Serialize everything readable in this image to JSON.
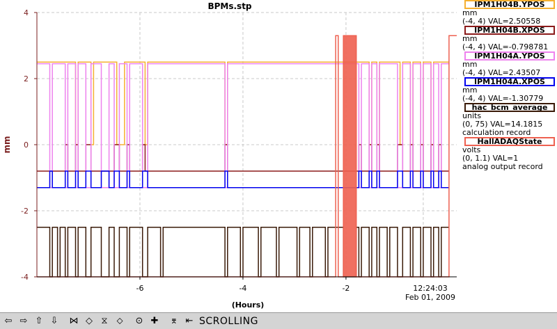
{
  "window": {
    "title": "BPMs.stp"
  },
  "chart_data": {
    "type": "line",
    "title": "BPMs.stp",
    "ylabel": "mm",
    "xlabel": "(Hours)",
    "xlim": [
      -8,
      0.15
    ],
    "ylim": [
      -4,
      4
    ],
    "x_ticks": [
      -6,
      -4,
      -2
    ],
    "y_ticks": [
      -4,
      -2,
      0,
      2,
      4
    ],
    "grid": true,
    "time_label": "12:24:03",
    "date_label": "Feb 01, 2009",
    "legend_position": "right",
    "series": [
      {
        "name": "IPM1H04B.YPOS",
        "color": "#f5b030",
        "unit": "mm",
        "range": "(-4, 4)",
        "val": "VAL=2.50558",
        "desc": "",
        "base": 2.5,
        "low": 0.0,
        "dips": [
          [
            -7.25,
            -7.2
          ],
          [
            -6.95,
            -6.9
          ],
          [
            -6.45,
            -6.3
          ],
          [
            -5.9,
            -5.85
          ],
          [
            -4.35,
            -4.3
          ],
          [
            -1.55,
            -1.5
          ],
          [
            -1.4,
            -1.35
          ],
          [
            -0.95,
            -0.9
          ],
          [
            -0.75,
            -0.7
          ],
          [
            -0.55,
            -0.5
          ],
          [
            -0.35,
            -0.3
          ]
        ]
      },
      {
        "name": "IPM1H04B.XPOS",
        "color": "#8b1a1a",
        "unit": "mm",
        "range": "(-4, 4)",
        "val": "VAL=-0.798781",
        "desc": "",
        "base": -0.8,
        "low": 0.0,
        "dips": [
          [
            -7.45,
            -7.4
          ],
          [
            -7.25,
            -7.2
          ],
          [
            -7.05,
            -6.95
          ],
          [
            -6.5,
            -6.4
          ],
          [
            -6.25,
            -6.2
          ],
          [
            -5.95,
            -5.9
          ],
          [
            -4.35,
            -4.3
          ],
          [
            -1.75,
            -1.7
          ],
          [
            -1.55,
            -1.5
          ],
          [
            -1.4,
            -1.35
          ],
          [
            -1.0,
            -0.9
          ],
          [
            -0.75,
            -0.7
          ],
          [
            -0.55,
            -0.5
          ],
          [
            -0.35,
            -0.3
          ],
          [
            -0.2,
            -0.15
          ]
        ]
      },
      {
        "name": "IPM1H04A.YPOS",
        "color": "#ee82ee",
        "unit": "mm",
        "range": "(-4, 4)",
        "val": "VAL=2.43507",
        "desc": "",
        "base": 2.45,
        "low": -1.3,
        "dips": [
          [
            -7.75,
            -7.7
          ],
          [
            -7.45,
            -7.4
          ],
          [
            -7.25,
            -7.2
          ],
          [
            -7.05,
            -6.95
          ],
          [
            -6.75,
            -6.6
          ],
          [
            -6.5,
            -6.4
          ],
          [
            -6.25,
            -6.2
          ],
          [
            -5.95,
            -5.85
          ],
          [
            -4.35,
            -4.3
          ],
          [
            -1.75,
            -1.7
          ],
          [
            -1.55,
            -1.5
          ],
          [
            -1.4,
            -1.35
          ],
          [
            -1.0,
            -0.9
          ],
          [
            -0.75,
            -0.7
          ],
          [
            -0.55,
            -0.5
          ],
          [
            -0.35,
            -0.3
          ],
          [
            -0.2,
            -0.15
          ]
        ]
      },
      {
        "name": "IPM1H04A.XPOS",
        "color": "#0000ee",
        "unit": "mm",
        "range": "(-4, 4)",
        "val": "VAL=-1.30779",
        "desc": "",
        "base": -1.3,
        "low": -0.8,
        "dips": [
          [
            -7.75,
            -7.7
          ],
          [
            -7.45,
            -7.4
          ],
          [
            -7.25,
            -7.2
          ],
          [
            -7.05,
            -6.95
          ],
          [
            -6.75,
            -6.6
          ],
          [
            -6.5,
            -6.4
          ],
          [
            -6.25,
            -6.2
          ],
          [
            -5.95,
            -5.85
          ],
          [
            -4.35,
            -4.3
          ],
          [
            -1.75,
            -1.7
          ],
          [
            -1.55,
            -1.5
          ],
          [
            -1.4,
            -1.35
          ],
          [
            -1.0,
            -0.9
          ],
          [
            -0.75,
            -0.7
          ],
          [
            -0.55,
            -0.5
          ],
          [
            -0.35,
            -0.3
          ],
          [
            -0.2,
            -0.15
          ]
        ]
      },
      {
        "name": "hac_bcm_average",
        "color": "#3a1a08",
        "unit": "units",
        "range": "(0, 75)",
        "val": "VAL=14.1815",
        "desc": "calculation record",
        "base": -2.5,
        "low": -4.0,
        "dips": [
          [
            -7.75,
            -7.7
          ],
          [
            -7.6,
            -7.55
          ],
          [
            -7.45,
            -7.4
          ],
          [
            -7.25,
            -7.2
          ],
          [
            -7.05,
            -6.95
          ],
          [
            -6.75,
            -6.6
          ],
          [
            -6.5,
            -6.4
          ],
          [
            -6.25,
            -6.2
          ],
          [
            -5.95,
            -5.85
          ],
          [
            -5.6,
            -5.55
          ],
          [
            -4.35,
            -4.3
          ],
          [
            -4.05,
            -4.0
          ],
          [
            -3.7,
            -3.65
          ],
          [
            -3.35,
            -3.3
          ],
          [
            -2.95,
            -2.9
          ],
          [
            -2.7,
            -2.65
          ],
          [
            -2.4,
            -2.35
          ],
          [
            -2.05,
            -1.8
          ],
          [
            -1.75,
            -1.7
          ],
          [
            -1.55,
            -1.5
          ],
          [
            -1.4,
            -1.35
          ],
          [
            -1.2,
            -1.15
          ],
          [
            -1.0,
            -0.9
          ],
          [
            -0.75,
            -0.7
          ],
          [
            -0.55,
            -0.5
          ],
          [
            -0.35,
            -0.3
          ],
          [
            -0.2,
            -0.15
          ]
        ]
      },
      {
        "name": "HallADAQState",
        "color": "#ee6050",
        "unit": "volts",
        "range": "(0, 1.1)",
        "val": "VAL=1",
        "desc": "analog output record",
        "base": -4.0,
        "high": 3.3,
        "pulses": [
          [
            -2.2,
            -2.15
          ],
          [
            -2.05,
            -1.8
          ],
          [
            0.0,
            0.15
          ]
        ]
      }
    ]
  },
  "toolbar": {
    "buttons": [
      {
        "name": "scroll-left-button",
        "glyph": "⇦"
      },
      {
        "name": "scroll-right-button",
        "glyph": "⇨"
      },
      {
        "name": "scroll-up-button",
        "glyph": "⇧"
      },
      {
        "name": "scroll-down-button",
        "glyph": "⇩"
      },
      {
        "name": "zoom-in-x-button",
        "glyph": "⋈"
      },
      {
        "name": "zoom-out-x-button",
        "glyph": "◇"
      },
      {
        "name": "zoom-in-y-button",
        "glyph": "⧖"
      },
      {
        "name": "zoom-out-y-button",
        "glyph": "⬦"
      },
      {
        "name": "stop-button",
        "glyph": "⊙"
      },
      {
        "name": "add-button",
        "glyph": "✚"
      },
      {
        "name": "auto-scale-button",
        "glyph": "⌆"
      },
      {
        "name": "back-to-scrolling-button",
        "glyph": "⇤"
      }
    ],
    "mode_label": "SCROLLING"
  }
}
